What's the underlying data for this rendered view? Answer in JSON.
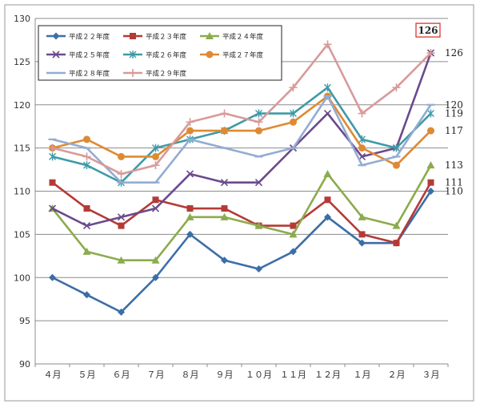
{
  "chart_data": {
    "type": "line",
    "categories": [
      "４月",
      "５月",
      "６月",
      "７月",
      "８月",
      "９月",
      "１０月",
      "１１月",
      "１２月",
      "１月",
      "２月",
      "３月"
    ],
    "ylim": [
      90,
      130
    ],
    "yticks": [
      90,
      95,
      100,
      105,
      110,
      115,
      120,
      125,
      130
    ],
    "grid": true,
    "legend_position": "top-left",
    "series": [
      {
        "name": "平成２２年度",
        "color": "#3b6ea8",
        "marker": "diamond",
        "values": [
          100,
          98,
          96,
          100,
          105,
          102,
          101,
          103,
          107,
          104,
          104,
          110
        ]
      },
      {
        "name": "平成２３年度",
        "color": "#b53a36",
        "marker": "square",
        "values": [
          111,
          108,
          106,
          109,
          108,
          108,
          106,
          106,
          109,
          105,
          104,
          111
        ]
      },
      {
        "name": "平成２４年度",
        "color": "#8cab4e",
        "marker": "triangle",
        "values": [
          108,
          103,
          102,
          102,
          107,
          107,
          106,
          105,
          112,
          107,
          106,
          113
        ]
      },
      {
        "name": "平成２５年度",
        "color": "#6b4a8c",
        "marker": "cross",
        "values": [
          108,
          106,
          107,
          108,
          112,
          111,
          111,
          115,
          119,
          114,
          115,
          126
        ]
      },
      {
        "name": "平成２６年度",
        "color": "#3f9aa8",
        "marker": "star",
        "values": [
          114,
          113,
          111,
          115,
          116,
          117,
          119,
          119,
          122,
          116,
          115,
          119
        ]
      },
      {
        "name": "平成２７年度",
        "color": "#de8a34",
        "marker": "circle",
        "values": [
          115,
          116,
          114,
          114,
          117,
          117,
          117,
          118,
          121,
          115,
          113,
          117
        ]
      },
      {
        "name": "平成２８年度",
        "color": "#93acd3",
        "marker": "dash",
        "values": [
          116,
          115,
          111,
          111,
          116,
          115,
          114,
          115,
          121,
          113,
          114,
          120
        ]
      },
      {
        "name": "平成２９年度",
        "color": "#d89a9a",
        "marker": "plus",
        "values": [
          115,
          114,
          112,
          113,
          118,
          119,
          118,
          122,
          127,
          119,
          122,
          126
        ]
      }
    ],
    "end_labels": [
      {
        "text": "126",
        "value": 126,
        "boxed": true
      },
      {
        "text": "126",
        "value": 126
      },
      {
        "text": "120",
        "value": 120
      },
      {
        "text": "119",
        "value": 119
      },
      {
        "text": "117",
        "value": 117
      },
      {
        "text": "113",
        "value": 113
      },
      {
        "text": "111",
        "value": 111
      },
      {
        "text": "110",
        "value": 110
      }
    ],
    "colors": {
      "grid": "#8c8c8c",
      "box_label": "#d9261c"
    }
  }
}
